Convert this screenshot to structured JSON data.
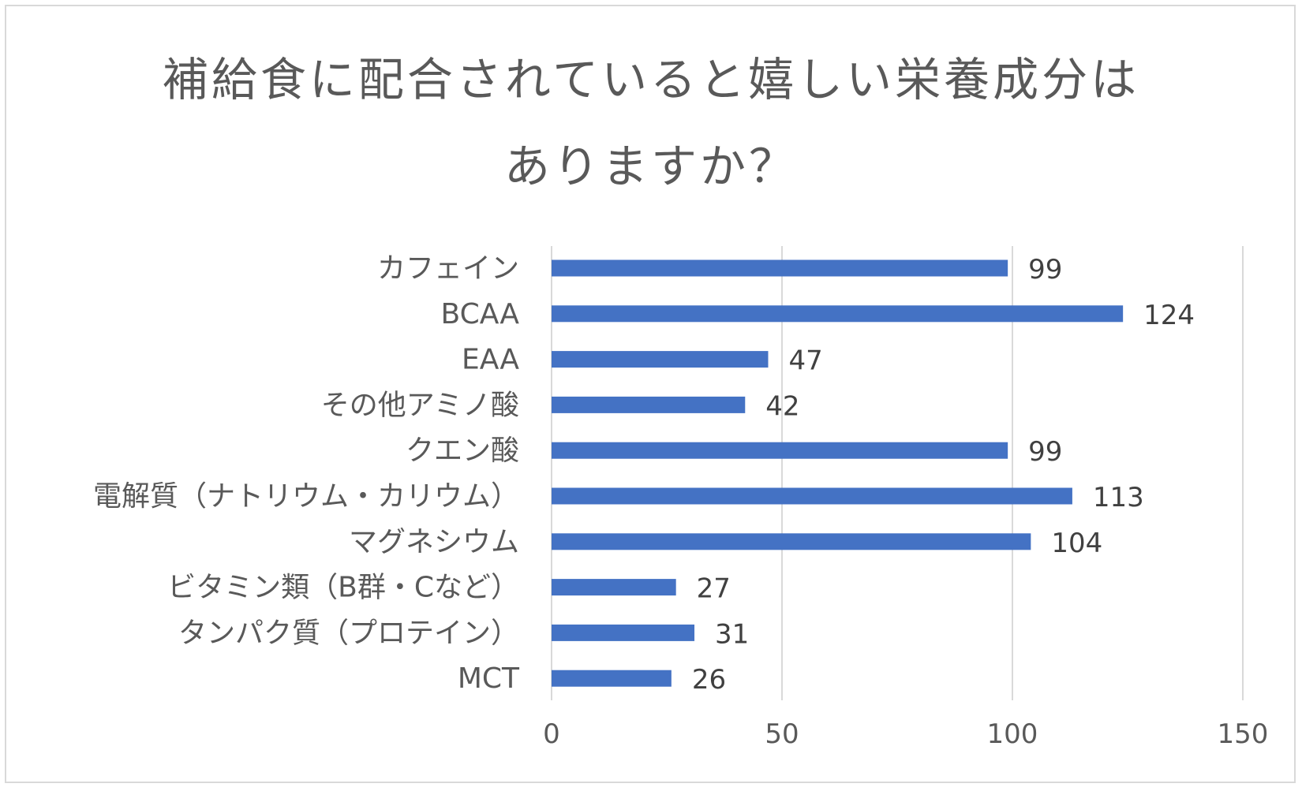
{
  "chart_data": {
    "type": "bar",
    "orientation": "horizontal",
    "title_lines": [
      "補給食に配合されていると嬉しい栄養成分は",
      "ありますか？"
    ],
    "categories": [
      "カフェイン",
      "BCAA",
      "EAA",
      "その他アミノ酸",
      "クエン酸",
      "電解質（ナトリウム・カリウム）",
      "マグネシウム",
      "ビタミン類（B群・Cなど）",
      "タンパク質（プロテイン）",
      "MCT"
    ],
    "values": [
      99,
      124,
      47,
      42,
      99,
      113,
      104,
      27,
      31,
      26
    ],
    "data_labels": [
      "99",
      "124",
      "47",
      "42",
      "99",
      "113",
      "104",
      "27",
      "31",
      "26"
    ],
    "xlim": [
      0,
      150
    ],
    "xticks": [
      0,
      50,
      100,
      150
    ],
    "xtick_labels": [
      "0",
      "50",
      "100",
      "150"
    ],
    "xlabel": "",
    "ylabel": "",
    "grid": "vertical",
    "legend": "none",
    "bar_color": "#4472c4",
    "grid_color": "#d9d9d9"
  }
}
